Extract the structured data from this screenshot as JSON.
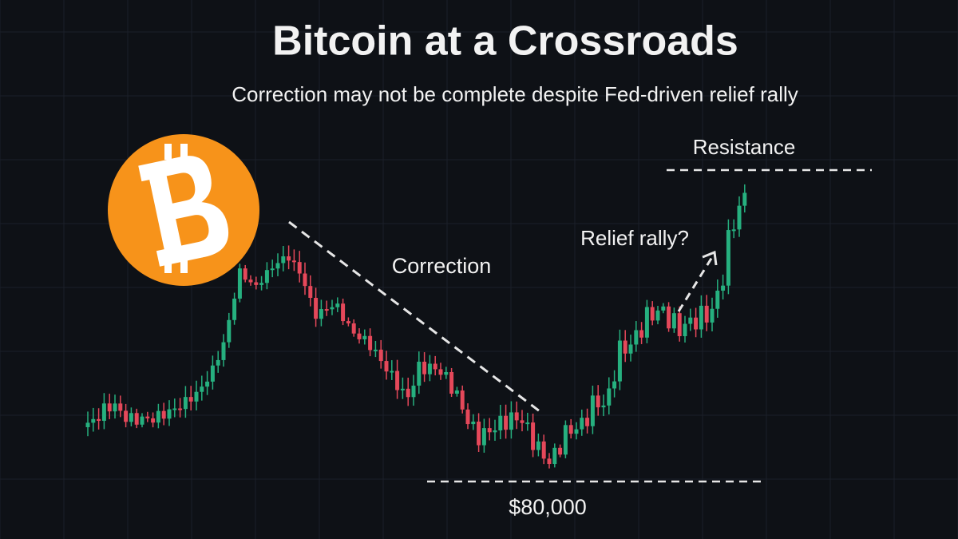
{
  "title": "Bitcoin at a Crossroads",
  "subtitle": "Correction may not be complete despite Fed-driven relief rally",
  "annotations": {
    "resistance": "Resistance",
    "relief_rally": "Relief rally?",
    "correction": "Correction",
    "support": "$80,000"
  }
}
